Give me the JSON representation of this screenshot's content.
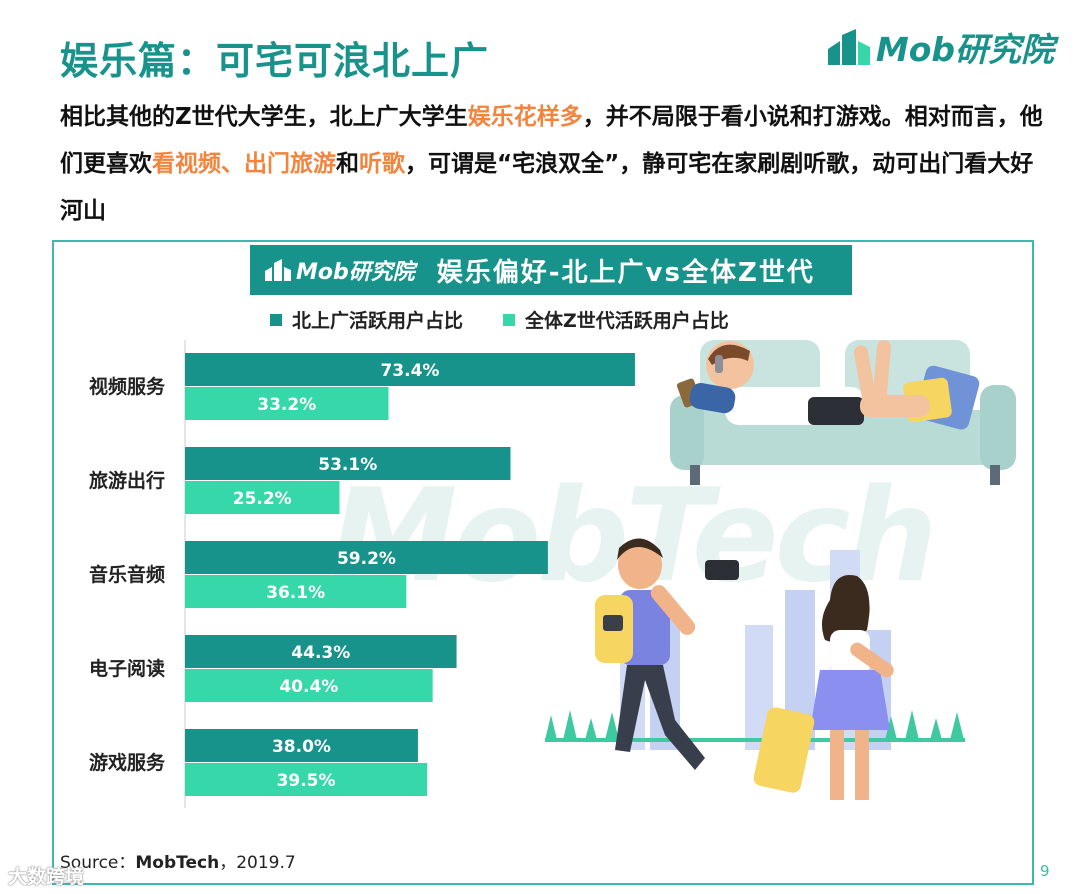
{
  "header": {
    "title": "娱乐篇：可宅可浪北上广",
    "logo_text": "Mob研究院"
  },
  "intro": {
    "p1": "相比其他的Z世代大学生，北上广大学生",
    "h1": "娱乐花样多",
    "p2": "，并不局限于看小说和打游戏。相对而言，他们更喜欢",
    "h2": "看视频、出门旅游",
    "p3": "和",
    "h3": "听歌",
    "p4": "，可谓是“宅浪双全”，静可宅在家刷剧听歌，动可出门看大好河山"
  },
  "banner": {
    "logo_text": "Mob研究院",
    "title": "娱乐偏好-北上广vs全体Z世代"
  },
  "watermark": "MobTech",
  "footer": {
    "source_label": "Source：",
    "source_name": "MobTech",
    "source_date": "，2019.7",
    "page_number": "9",
    "stamp": "大数跨境"
  },
  "colors": {
    "series1": "#17938b",
    "series2": "#36d7a8",
    "accent": "#f4843d"
  },
  "chart_data": {
    "type": "bar",
    "orientation": "horizontal",
    "categories": [
      "视频服务",
      "旅游出行",
      "音乐音频",
      "电子阅读",
      "游戏服务"
    ],
    "series": [
      {
        "name": "北上广活跃用户占比",
        "values": [
          73.4,
          53.1,
          59.2,
          44.3,
          38.0
        ],
        "labels": [
          "73.4%",
          "53.1%",
          "59.2%",
          "44.3%",
          "38.0%"
        ]
      },
      {
        "name": "全体Z世代活跃用户占比",
        "values": [
          33.2,
          25.2,
          36.1,
          40.4,
          39.5
        ],
        "labels": [
          "33.2%",
          "25.2%",
          "36.1%",
          "40.4%",
          "39.5%"
        ]
      }
    ],
    "title": "娱乐偏好-北上广vs全体Z世代",
    "unit": "%",
    "legend_position": "top",
    "grid": false
  }
}
